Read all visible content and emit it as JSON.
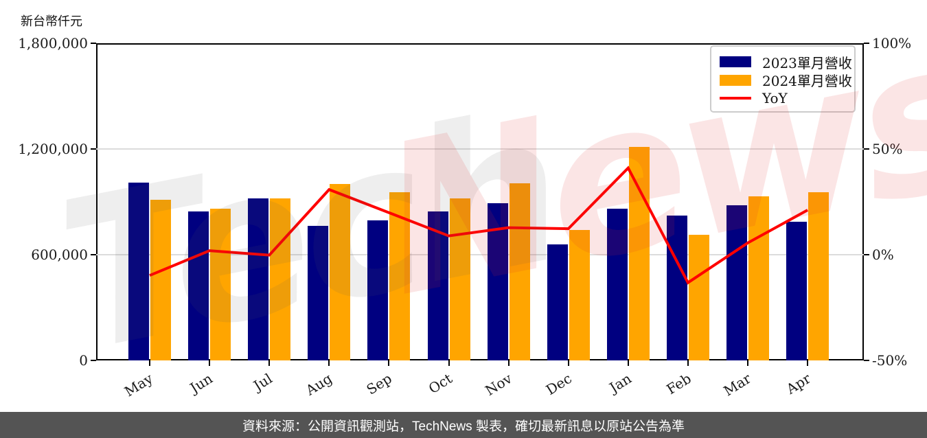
{
  "axis_title": "新台幣仟元",
  "footer_text": "資料來源：公開資訊觀測站，TechNews 製表，確切最新訊息以原站公告為準",
  "watermark": {
    "text_gray": "Tech",
    "text_red": "News"
  },
  "colors": {
    "bar_2023": "#000080",
    "bar_2024": "#FFA500",
    "yoy_line": "#FF0000",
    "gridline": "#dcdcdc",
    "footer_bg": "#545454"
  },
  "chart_data": {
    "type": "bar",
    "title": "",
    "xlabel": "",
    "ylabel": "新台幣仟元",
    "categories": [
      "May",
      "Jun",
      "Jul",
      "Aug",
      "Sep",
      "Oct",
      "Nov",
      "Dec",
      "Jan",
      "Feb",
      "Mar",
      "Apr"
    ],
    "series": [
      {
        "name": "2023單月營收",
        "type": "bar",
        "color": "#000080",
        "axis": "left",
        "values": [
          1011000,
          847000,
          920000,
          765000,
          795000,
          844000,
          891000,
          658000,
          860000,
          821000,
          882000,
          787000
        ]
      },
      {
        "name": "2024單月營收",
        "type": "bar",
        "color": "#FFA500",
        "axis": "left",
        "values": [
          912000,
          863000,
          918000,
          1001000,
          953000,
          919000,
          1005000,
          739000,
          1213000,
          713000,
          931000,
          953000
        ]
      },
      {
        "name": "YoY",
        "type": "line",
        "color": "#FF0000",
        "axis": "right",
        "values": [
          -9.8,
          1.9,
          -0.2,
          30.8,
          19.9,
          8.9,
          12.8,
          12.3,
          41.0,
          -13.2,
          5.6,
          21.1
        ]
      }
    ],
    "left_axis": {
      "min": 0,
      "max": 1800000,
      "ticks": [
        {
          "label": "0",
          "value": 0
        },
        {
          "label": "600,000",
          "value": 600000
        },
        {
          "label": "1,200,000",
          "value": 1200000
        },
        {
          "label": "1,800,000",
          "value": 1800000
        }
      ]
    },
    "right_axis": {
      "min": -50,
      "max": 100,
      "ticks": [
        {
          "label": "-50%",
          "value": -50
        },
        {
          "label": "0%",
          "value": 0
        },
        {
          "label": "50%",
          "value": 50
        },
        {
          "label": "100%",
          "value": 100
        }
      ]
    },
    "legend_position": "top-right",
    "grid": true
  }
}
